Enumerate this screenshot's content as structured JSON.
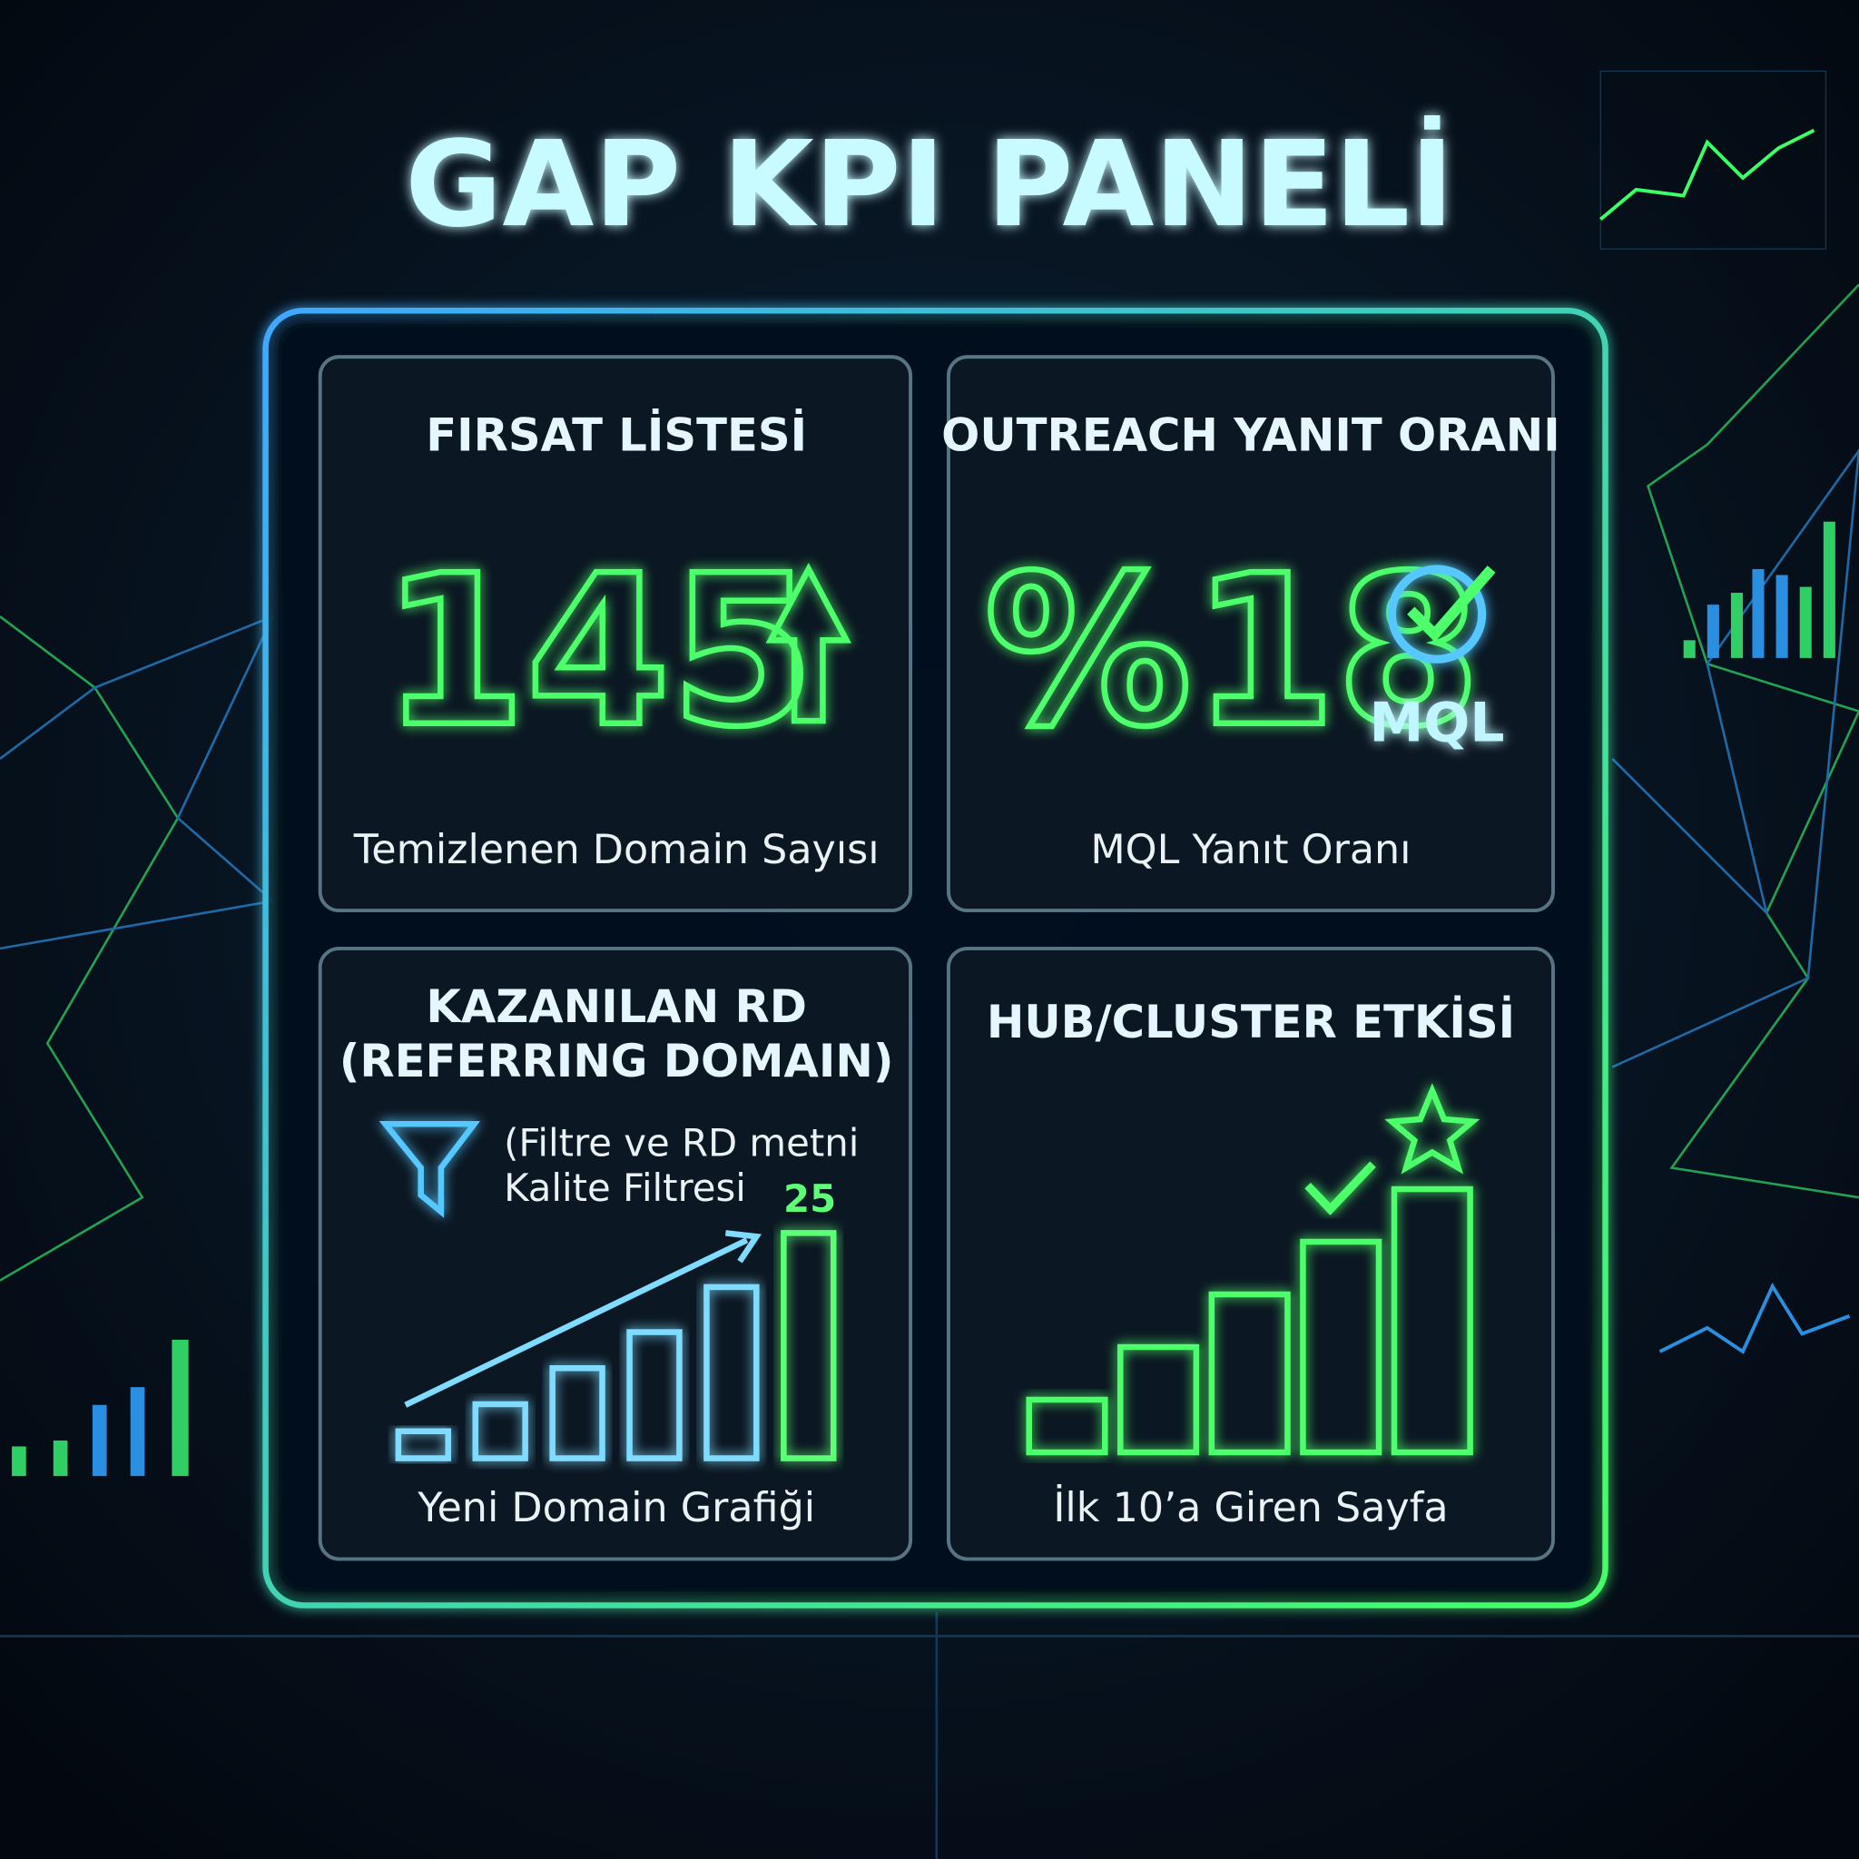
{
  "header": {
    "title": "GAP KPI PANELİ"
  },
  "cards": [
    {
      "title": "FIRSAT LİSTESİ",
      "value": 145,
      "caption": "Temizlenen Domain Sayısı"
    },
    {
      "title": "OUTREACH YANIT ORANI",
      "value": "%18",
      "badge": "MQL",
      "caption": "MQL Yanıt Oranı"
    },
    {
      "title": [
        "KAZANILAN RD",
        "(REFERRING DOMAIN)"
      ],
      "note": [
        "(Filtre ve RD metni",
        "Kalite Filtresi"
      ],
      "chart": {
        "values": [
          3,
          6,
          10,
          14,
          19,
          25
        ]
      },
      "caption": "Yeni Domain Grafiği"
    },
    {
      "title": "HUB/CLUSTER ETKİSİ",
      "chart": {
        "values": [
          2,
          4,
          6,
          8,
          10
        ]
      },
      "caption": "İlk 10’a Giren Sayfa"
    }
  ]
}
